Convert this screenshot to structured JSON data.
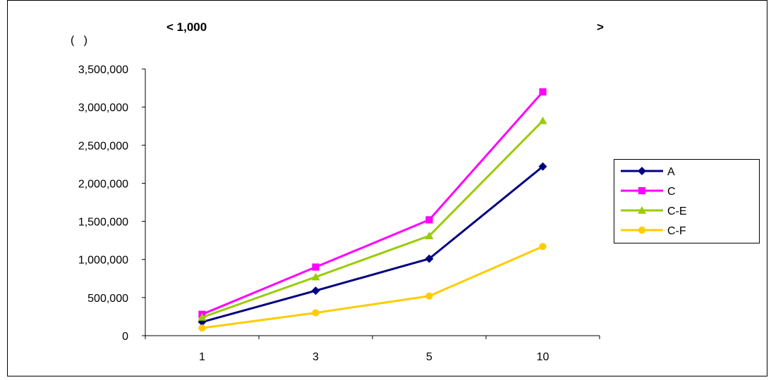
{
  "chart_data": {
    "type": "line",
    "title_left": "< 1,000",
    "title_right": ">",
    "ylabel": "(   )",
    "categories": [
      "1",
      "3",
      "5",
      "10"
    ],
    "ylim": [
      0,
      3500000
    ],
    "ytick_values": [
      0,
      500000,
      1000000,
      1500000,
      2000000,
      2500000,
      3000000,
      3500000
    ],
    "ytick_labels": [
      "0",
      "500,000",
      "1,000,000",
      "1,500,000",
      "2,000,000",
      "2,500,000",
      "3,000,000",
      "3,500,000"
    ],
    "grid": false,
    "legend_position": "right",
    "series": [
      {
        "name": "A",
        "color": "#000080",
        "marker": "diamond",
        "values": [
          180000,
          590000,
          1010000,
          2220000
        ]
      },
      {
        "name": "C",
        "color": "#ff00ff",
        "marker": "square",
        "values": [
          280000,
          900000,
          1520000,
          3200000
        ]
      },
      {
        "name": "C-E",
        "color": "#99cc00",
        "marker": "triangle",
        "values": [
          240000,
          770000,
          1310000,
          2820000
        ]
      },
      {
        "name": "C-F",
        "color": "#ffcc00",
        "marker": "circle",
        "values": [
          100000,
          300000,
          520000,
          1170000
        ]
      }
    ]
  }
}
